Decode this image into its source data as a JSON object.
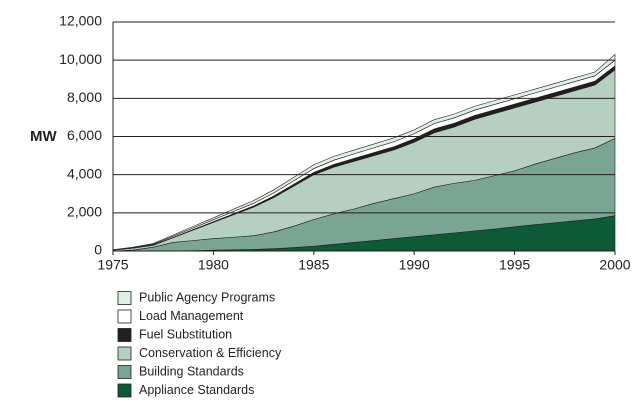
{
  "chart_data": {
    "type": "stacked_area",
    "y_label": "MW",
    "x": [
      1975,
      1976,
      1977,
      1978,
      1979,
      1980,
      1981,
      1982,
      1983,
      1984,
      1985,
      1986,
      1987,
      1988,
      1989,
      1990,
      1991,
      1992,
      1993,
      1994,
      1995,
      1996,
      1997,
      1998,
      1999,
      2000
    ],
    "xlim": [
      1975,
      2000
    ],
    "xticks": [
      1975,
      1980,
      1985,
      1990,
      1995,
      2000
    ],
    "ylim": [
      0,
      12000
    ],
    "yticks": [
      0,
      {
        "value": 2000,
        "label": "2,000"
      },
      {
        "value": 4000,
        "label": "4,000"
      },
      {
        "value": 6000,
        "label": "6,000"
      },
      {
        "value": 8000,
        "label": "8,000"
      },
      {
        "value": 10000,
        "label": "10,000"
      },
      {
        "value": 12000,
        "label": "12,000"
      }
    ],
    "grid": true,
    "series": [
      {
        "name": "Appliance Standards",
        "color": "#0e5a36",
        "values": [
          0,
          0,
          0,
          10,
          20,
          40,
          60,
          80,
          120,
          180,
          250,
          350,
          450,
          550,
          650,
          750,
          850,
          950,
          1050,
          1150,
          1270,
          1380,
          1480,
          1580,
          1680,
          1850
        ]
      },
      {
        "name": "Building Standards",
        "color": "#7aa592",
        "values": [
          0,
          50,
          200,
          440,
          530,
          610,
          660,
          720,
          880,
          1120,
          1400,
          1600,
          1750,
          1950,
          2100,
          2250,
          2500,
          2600,
          2650,
          2800,
          2930,
          3170,
          3370,
          3570,
          3720,
          4050
        ]
      },
      {
        "name": "Conservation & Efficiency",
        "color": "#b5cfc0",
        "values": [
          50,
          100,
          100,
          250,
          550,
          850,
          1180,
          1500,
          1800,
          2100,
          2350,
          2450,
          2500,
          2500,
          2550,
          2700,
          2850,
          2950,
          3200,
          3250,
          3300,
          3250,
          3250,
          3250,
          3300,
          3600
        ]
      },
      {
        "name": "Fuel Substitution",
        "color": "#231f20",
        "values": [
          0,
          0,
          10,
          20,
          30,
          40,
          50,
          60,
          80,
          100,
          120,
          140,
          150,
          160,
          170,
          180,
          200,
          200,
          200,
          200,
          200,
          200,
          200,
          200,
          200,
          200
        ]
      },
      {
        "name": "Load Management",
        "color": "#ffffff",
        "values": [
          0,
          20,
          40,
          60,
          80,
          100,
          120,
          140,
          160,
          180,
          200,
          220,
          240,
          250,
          260,
          270,
          280,
          280,
          280,
          280,
          280,
          280,
          280,
          280,
          280,
          300
        ]
      },
      {
        "name": "Public Agency Programs",
        "color": "#e0efe6",
        "values": [
          20,
          30,
          40,
          60,
          80,
          100,
          120,
          140,
          160,
          180,
          200,
          200,
          200,
          200,
          200,
          200,
          200,
          200,
          200,
          200,
          200,
          200,
          200,
          200,
          200,
          300
        ]
      }
    ]
  }
}
